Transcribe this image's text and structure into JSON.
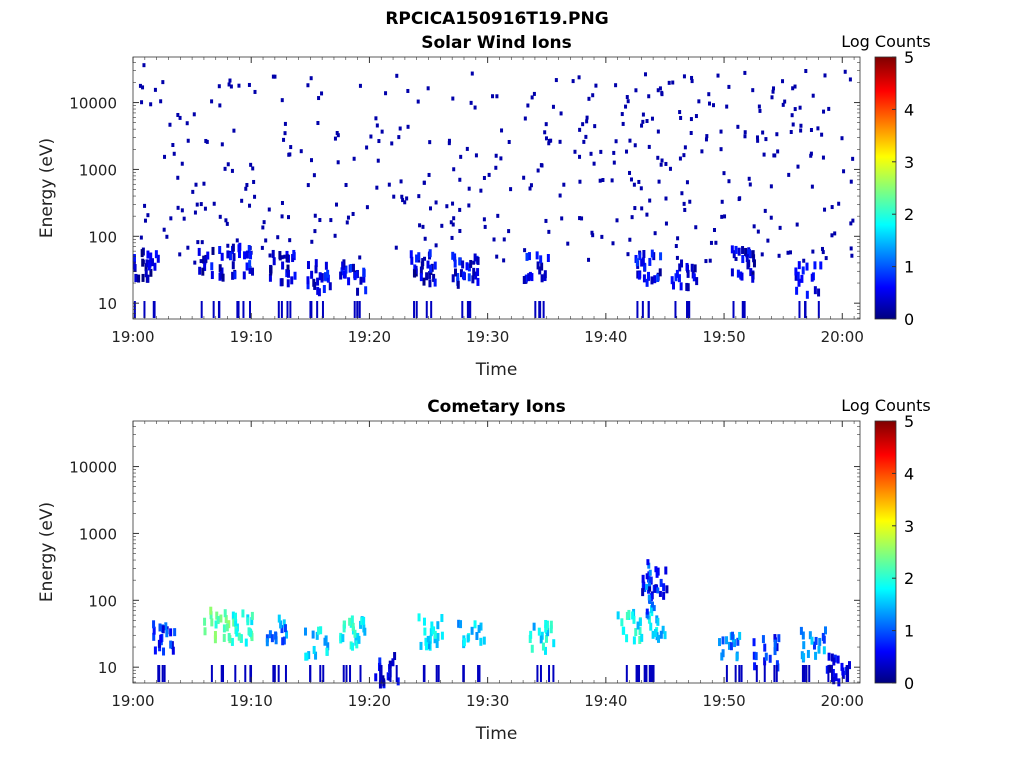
{
  "figure_title": "RPCICA150916T19.PNG",
  "chart_data": [
    {
      "type": "heatmap",
      "title": "Solar Wind Ions",
      "xlabel": "Time",
      "ylabel": "Energy (eV)",
      "x_ticks": [
        "19:00",
        "19:10",
        "19:20",
        "19:30",
        "19:40",
        "19:50",
        "20:00"
      ],
      "y_ticks": [
        "10",
        "100",
        "1000",
        "10000"
      ],
      "y_scale": "log",
      "colorbar": {
        "label": "Log Counts",
        "ticks": [
          "0",
          "1",
          "2",
          "3",
          "4",
          "5"
        ],
        "colormap": "jet",
        "range": [
          0,
          5
        ]
      },
      "sample_points": [
        {
          "t": 0.8,
          "e": 35000,
          "c": 0.2
        },
        {
          "t": 8.0,
          "e": 18000,
          "c": 0.2
        },
        {
          "t": 12.5,
          "e": 10500,
          "c": 0.2
        },
        {
          "t": 24.0,
          "e": 10000,
          "c": 0.2
        },
        {
          "t": 43.5,
          "e": 12000,
          "c": 0.2
        },
        {
          "t": 55.0,
          "e": 10000,
          "c": 0.2
        },
        {
          "t": 3.0,
          "e": 4500,
          "c": 0.2
        },
        {
          "t": 20.0,
          "e": 3000,
          "c": 0.2
        },
        {
          "t": 36.0,
          "e": 2500,
          "c": 0.2
        },
        {
          "t": 48.0,
          "e": 1800,
          "c": 0.2
        },
        {
          "t": 10.0,
          "e": 1000,
          "c": 0.2
        },
        {
          "t": 30.0,
          "e": 800,
          "c": 0.2
        },
        {
          "t": 52.0,
          "e": 700,
          "c": 0.2
        },
        {
          "t": 6.0,
          "e": 250,
          "c": 0.2
        },
        {
          "t": 27.0,
          "e": 180,
          "c": 0.2
        },
        {
          "t": 45.0,
          "e": 150,
          "c": 0.2
        },
        {
          "t": 59.0,
          "e": 100,
          "c": 0.2
        },
        {
          "t": 15.0,
          "e": 80,
          "c": 0.2
        },
        {
          "t": 33.0,
          "e": 60,
          "c": 0.2
        }
      ],
      "clusters": [
        {
          "t": 1.0,
          "e": 35,
          "c": 0.3
        },
        {
          "t": 6.5,
          "e": 35,
          "c": 0.4
        },
        {
          "t": 9.0,
          "e": 38,
          "c": 0.5
        },
        {
          "t": 12.5,
          "e": 30,
          "c": 0.4
        },
        {
          "t": 15.5,
          "e": 22,
          "c": 0.5
        },
        {
          "t": 18.5,
          "e": 22,
          "c": 0.5
        },
        {
          "t": 24.5,
          "e": 30,
          "c": 0.4
        },
        {
          "t": 28.0,
          "e": 28,
          "c": 0.5
        },
        {
          "t": 34.0,
          "e": 30,
          "c": 0.5
        },
        {
          "t": 43.5,
          "e": 30,
          "c": 0.5
        },
        {
          "t": 46.5,
          "e": 22,
          "c": 0.4
        },
        {
          "t": 51.5,
          "e": 35,
          "c": 0.4
        },
        {
          "t": 57.0,
          "e": 20,
          "c": 0.4
        }
      ]
    },
    {
      "type": "heatmap",
      "title": "Cometary Ions",
      "xlabel": "Time",
      "ylabel": "Energy (eV)",
      "x_ticks": [
        "19:00",
        "19:10",
        "19:20",
        "19:30",
        "19:40",
        "19:50",
        "20:00"
      ],
      "y_ticks": [
        "10",
        "100",
        "1000",
        "10000"
      ],
      "y_scale": "log",
      "colorbar": {
        "label": "Log Counts",
        "ticks": [
          "0",
          "1",
          "2",
          "3",
          "4",
          "5"
        ],
        "colormap": "jet",
        "range": [
          0,
          5
        ]
      },
      "clusters": [
        {
          "t": 2.5,
          "e": 25,
          "c": 0.8
        },
        {
          "t": 7.0,
          "e": 38,
          "c": 2.2
        },
        {
          "t": 9.0,
          "e": 35,
          "c": 2.0
        },
        {
          "t": 12.0,
          "e": 35,
          "c": 1.2
        },
        {
          "t": 15.5,
          "e": 20,
          "c": 1.6
        },
        {
          "t": 18.5,
          "e": 28,
          "c": 1.8
        },
        {
          "t": 21.5,
          "e": 8,
          "c": 0.5
        },
        {
          "t": 25.0,
          "e": 30,
          "c": 1.7
        },
        {
          "t": 28.5,
          "e": 30,
          "c": 1.5
        },
        {
          "t": 34.5,
          "e": 25,
          "c": 1.7
        },
        {
          "t": 42.0,
          "e": 35,
          "c": 1.8
        },
        {
          "t": 44.0,
          "e": 40,
          "c": 1.6
        },
        {
          "t": 44.0,
          "e": 150,
          "c": 0.6
        },
        {
          "t": 50.5,
          "e": 20,
          "c": 1.2
        },
        {
          "t": 53.5,
          "e": 15,
          "c": 0.7
        },
        {
          "t": 57.5,
          "e": 20,
          "c": 1.2
        },
        {
          "t": 59.5,
          "e": 8,
          "c": 0.5
        }
      ]
    }
  ]
}
